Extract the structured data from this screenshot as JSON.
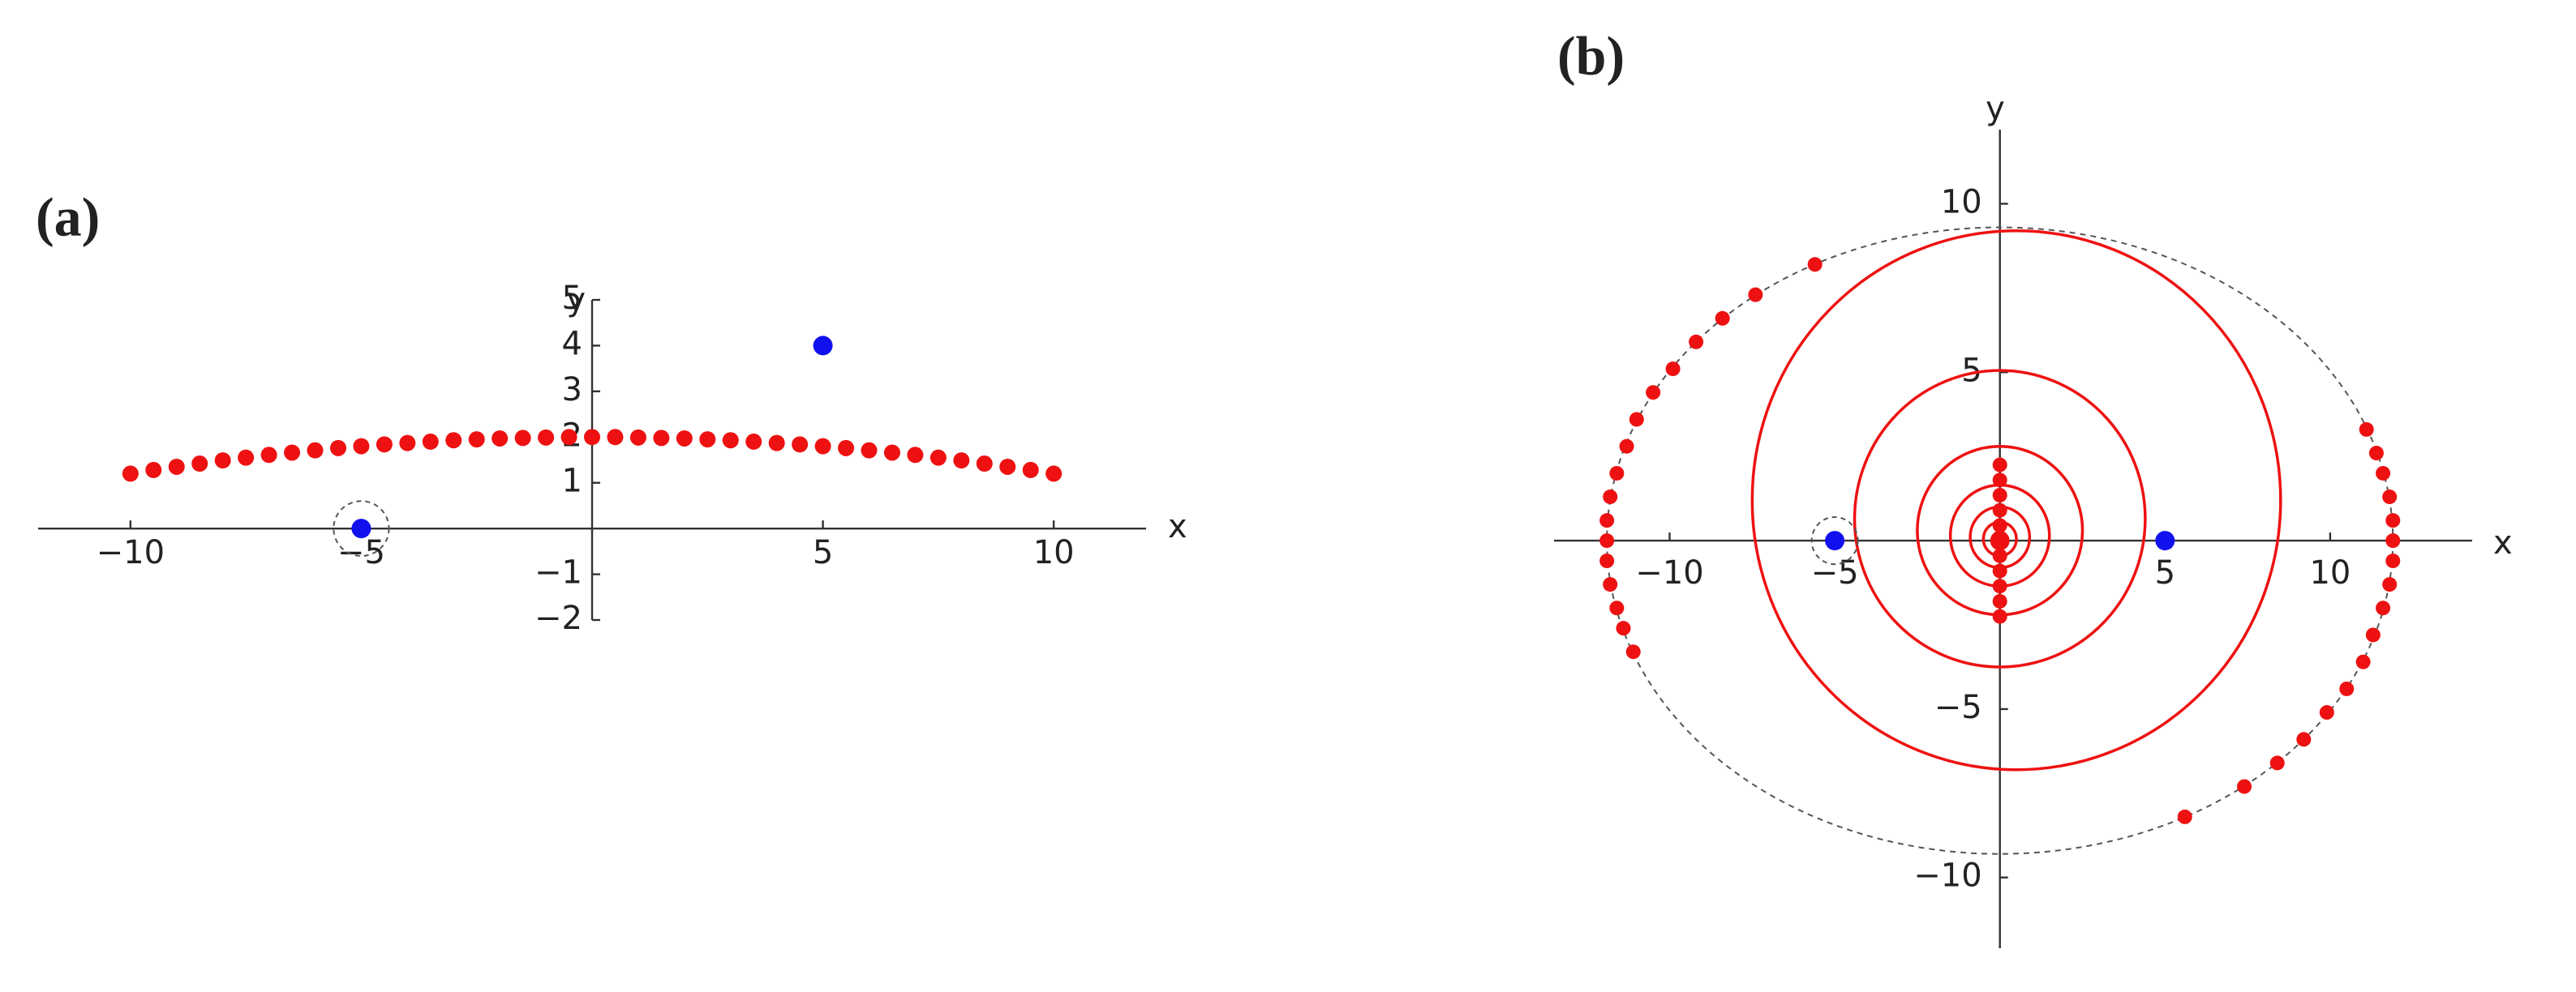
{
  "chart_data": [
    {
      "type": "scatter",
      "title": "(a)",
      "x_label": "x",
      "y_label": "y",
      "xlim": [
        -12,
        12
      ],
      "ylim": [
        -2,
        5
      ],
      "xticks": [
        {
          "value": -10,
          "label": "−10"
        },
        {
          "value": -5,
          "label": "−5"
        },
        5,
        10
      ],
      "yticks": [
        {
          "value": -2,
          "label": "−2"
        },
        {
          "value": -1,
          "label": "−1"
        },
        1,
        2,
        3,
        4,
        5
      ],
      "series": [
        {
          "color": "#ee1111",
          "x": [
            -10,
            -9.5,
            -9,
            -8.5,
            -8,
            -7.5,
            -7,
            -6.5,
            -6,
            -5.5,
            -5,
            -4.5,
            -4,
            -3.5,
            -3,
            -2.5,
            -2,
            -1.5,
            -1,
            -0.5,
            0,
            0.5,
            1,
            1.5,
            2,
            2.5,
            3,
            3.5,
            4,
            4.5,
            5,
            5.5,
            6,
            6.5,
            7,
            7.5,
            8,
            8.5,
            9,
            9.5,
            10
          ],
          "values": [
            1.2,
            1.28,
            1.35,
            1.42,
            1.49,
            1.55,
            1.61,
            1.66,
            1.71,
            1.76,
            1.8,
            1.84,
            1.87,
            1.9,
            1.93,
            1.95,
            1.97,
            1.98,
            1.99,
            2,
            2,
            2,
            1.99,
            1.98,
            1.97,
            1.95,
            1.93,
            1.9,
            1.87,
            1.84,
            1.8,
            1.76,
            1.71,
            1.66,
            1.61,
            1.55,
            1.49,
            1.42,
            1.35,
            1.28,
            1.2
          ]
        },
        {
          "color": "#1111ee",
          "x": [
            -5,
            5
          ],
          "values": [
            0,
            4
          ]
        }
      ],
      "highlight": {
        "x": -5,
        "y": 0,
        "r": 0.6
      }
    },
    {
      "type": "scatter",
      "title": "(b)",
      "x_label": "x",
      "y_label": "y",
      "xlim": [
        -13.5,
        14.3
      ],
      "ylim": [
        -12.1,
        12.2
      ],
      "xticks": [
        {
          "value": -10,
          "label": "−10"
        },
        {
          "value": -5,
          "label": "−5"
        },
        5,
        10
      ],
      "yticks": [
        {
          "value": -10,
          "label": "−10"
        },
        {
          "value": -5,
          "label": "−5"
        },
        5,
        10
      ],
      "ellipse": {
        "a": 11.9,
        "b": 9.3
      },
      "curve_color": "#ee1111",
      "curves": [
        {
          "cx": 0.5,
          "cy": 1.2,
          "r": 8
        },
        {
          "cx": 0,
          "cy": 0.65,
          "r": 4.4
        },
        {
          "cx": 0,
          "cy": 0.3,
          "r": 2.5
        },
        {
          "cx": 0,
          "cy": 0.15,
          "r": 1.5
        },
        {
          "cx": 0,
          "cy": 0.1,
          "r": 0.9
        },
        {
          "cx": 0,
          "cy": 0.05,
          "r": 0.5
        },
        {
          "cx": 0,
          "cy": 0,
          "r": 0.25
        }
      ],
      "series": [
        {
          "color": "#ee1111",
          "x": [
            -5.6,
            -7.4,
            -8.4,
            -9.2,
            -9.9,
            -10.5,
            -11,
            -11.3,
            -11.6,
            -11.8,
            -11.9,
            -11.9,
            -11.9,
            -11.8,
            -11.6,
            -11.4,
            -11.1,
            5.6,
            7.4,
            8.4,
            9.2,
            9.9,
            10.5,
            11,
            11.3,
            11.6,
            11.8,
            11.9,
            11.9,
            11.9,
            11.8,
            11.6,
            11.4,
            11.1,
            0,
            0,
            0,
            0,
            0,
            0,
            0,
            0,
            0,
            0,
            0
          ],
          "values": [
            8.2,
            7.3,
            6.6,
            5.9,
            5.1,
            4.4,
            3.6,
            2.8,
            2,
            1.3,
            0.6,
            0,
            -0.6,
            -1.3,
            -2,
            -2.6,
            -3.3,
            -8.2,
            -7.3,
            -6.6,
            -5.9,
            -5.1,
            -4.4,
            -3.6,
            -2.8,
            -2,
            -1.3,
            -0.6,
            0,
            0.6,
            1.3,
            2,
            2.6,
            3.3,
            2.25,
            1.8,
            1.35,
            0.9,
            0.45,
            0,
            -0.45,
            -0.9,
            -1.35,
            -1.8,
            -2.25
          ]
        },
        {
          "color": "#1111ee",
          "x": [
            -5,
            5
          ],
          "values": [
            0,
            0
          ]
        }
      ],
      "highlight": {
        "x": -5,
        "y": 0,
        "r": 0.7
      }
    }
  ]
}
